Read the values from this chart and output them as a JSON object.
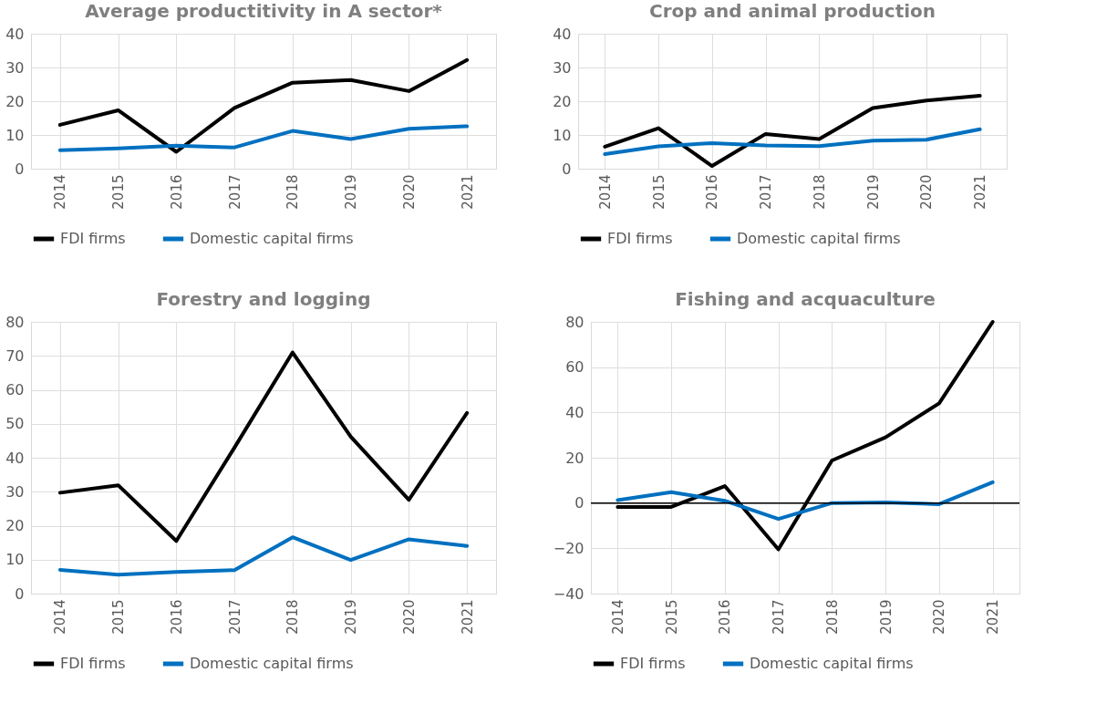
{
  "chart_data": [
    {
      "type": "line",
      "title": "Average productitivity in A sector*",
      "categories": [
        "2014",
        "2015",
        "2016",
        "2017",
        "2018",
        "2019",
        "2020",
        "2021"
      ],
      "ylim": [
        0,
        40
      ],
      "yticks": [
        0,
        10,
        20,
        30,
        40
      ],
      "grid": true,
      "legend": "bottom",
      "line_style": "solid",
      "series": [
        {
          "name": "FDI firms",
          "color": "#000000",
          "values": [
            13,
            17.3,
            5,
            18,
            25.5,
            26.3,
            23,
            32.2
          ]
        },
        {
          "name": "Domestic capital firms",
          "color": "#0070c0",
          "values": [
            5.5,
            6,
            6.8,
            6.3,
            11.2,
            8.8,
            11.8,
            12.6
          ]
        }
      ]
    },
    {
      "type": "line",
      "title": "Crop and animal production",
      "categories": [
        "2014",
        "2015",
        "2016",
        "2017",
        "2018",
        "2019",
        "2020",
        "2021"
      ],
      "ylim": [
        0,
        40
      ],
      "yticks": [
        0,
        10,
        20,
        30,
        40
      ],
      "grid": true,
      "legend": "bottom",
      "line_style": "solid",
      "series": [
        {
          "name": "FDI firms",
          "color": "#000000",
          "values": [
            6.5,
            12,
            0.8,
            10.3,
            8.8,
            18,
            20.2,
            21.6
          ]
        },
        {
          "name": "Domestic capital firms",
          "color": "#0070c0",
          "values": [
            4.3,
            6.6,
            7.6,
            6.9,
            6.7,
            8.3,
            8.6,
            11.7
          ]
        }
      ]
    },
    {
      "type": "line",
      "title": "Forestry and logging",
      "categories": [
        "2014",
        "2015",
        "2016",
        "2017",
        "2018",
        "2019",
        "2020",
        "2021"
      ],
      "ylim": [
        0,
        80
      ],
      "yticks": [
        0,
        10,
        20,
        30,
        40,
        50,
        60,
        70,
        80
      ],
      "grid": true,
      "legend": "bottom",
      "line_style": "solid",
      "series": [
        {
          "name": "FDI firms",
          "color": "#000000",
          "values": [
            29.7,
            31.9,
            15.5,
            43,
            71,
            46.2,
            27.6,
            53.2
          ]
        },
        {
          "name": "Domestic capital firms",
          "color": "#0070c0",
          "values": [
            7,
            5.6,
            6.4,
            6.9,
            16.6,
            9.9,
            16,
            14
          ]
        }
      ]
    },
    {
      "type": "line",
      "title": "Fishing and acquaculture",
      "categories": [
        "2014",
        "2015",
        "2016",
        "2017",
        "2018",
        "2019",
        "2020",
        "2021"
      ],
      "ylim": [
        -40,
        80
      ],
      "yticks": [
        -40,
        -20,
        0,
        20,
        40,
        60,
        80
      ],
      "grid": true,
      "legend": "bottom",
      "line_style": "solid",
      "ref_lines": [
        {
          "axis": "y",
          "value": 0,
          "color": "#000000"
        }
      ],
      "series": [
        {
          "name": "FDI firms",
          "color": "#000000",
          "values": [
            -1.7,
            -1.7,
            7.5,
            -20.5,
            18.8,
            29,
            44,
            80
          ]
        },
        {
          "name": "Domestic capital firms",
          "color": "#0070c0",
          "values": [
            1.3,
            4.8,
            1,
            -7,
            0,
            0.3,
            -0.5,
            9.2
          ]
        }
      ]
    }
  ]
}
